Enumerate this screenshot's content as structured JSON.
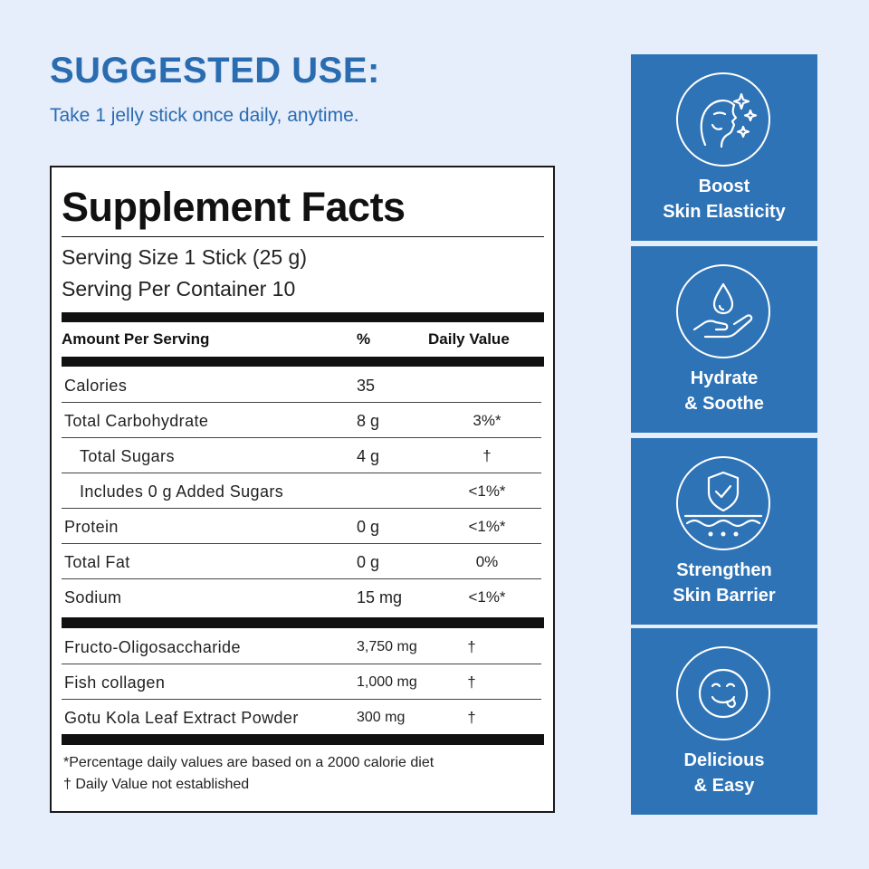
{
  "suggested_use": {
    "title": "SUGGESTED USE:",
    "text": "Take 1 jelly stick once daily, anytime."
  },
  "supplement_facts": {
    "title": "Supplement Facts",
    "serving_size": "Serving Size 1 Stick (25 g)",
    "servings_per_container": "Serving Per Container 10",
    "columns": {
      "amount": "Amount Per Serving",
      "percent": "%",
      "daily_value": "Daily Value"
    },
    "nutrients": [
      {
        "name": "Calories",
        "amount": "35",
        "dv": ""
      },
      {
        "name": "Total Carbohydrate",
        "amount": "8 g",
        "dv": "3%*"
      },
      {
        "name": "Total Sugars",
        "amount": "4 g",
        "dv": "†"
      },
      {
        "name": "Includes 0 g Added Sugars",
        "amount": "",
        "dv": "<1%*"
      },
      {
        "name": "Protein",
        "amount": "0 g",
        "dv": "<1%*"
      },
      {
        "name": "Total Fat",
        "amount": "0 g",
        "dv": "0%"
      },
      {
        "name": "Sodium",
        "amount": "15 mg",
        "dv": "<1%*"
      }
    ],
    "ingredients": [
      {
        "name": "Fructo-Oligosaccharide",
        "amount": "3,750 mg",
        "dv": "†"
      },
      {
        "name": "Fish collagen",
        "amount": "1,000 mg",
        "dv": "†"
      },
      {
        "name": "Gotu Kola Leaf Extract Powder",
        "amount": "300 mg",
        "dv": "†"
      }
    ],
    "footnotes": [
      "*Percentage daily values are based on a 2000 calorie diet",
      "† Daily Value not established"
    ]
  },
  "benefits": [
    {
      "line1": "Boost",
      "line2": "Skin Elasticity",
      "icon": "face-sparkle-icon"
    },
    {
      "line1": "Hydrate",
      "line2": "& Soothe",
      "icon": "hand-droplet-icon"
    },
    {
      "line1": "Strengthen",
      "line2": "Skin Barrier",
      "icon": "shield-check-icon"
    },
    {
      "line1": "Delicious",
      "line2": "& Easy",
      "icon": "smiley-tongue-icon"
    }
  ],
  "colors": {
    "background": "#e6edfb",
    "accent": "#2a6cb0",
    "tile": "#2e73b6"
  }
}
